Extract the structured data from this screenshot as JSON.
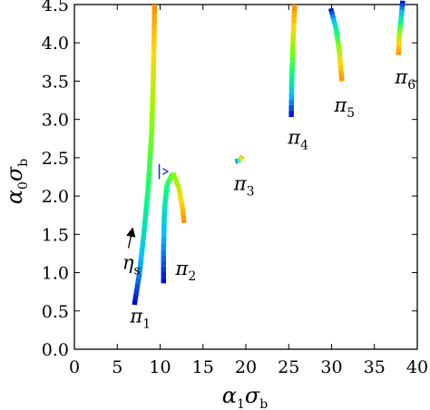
{
  "chart_data": {
    "type": "scatter",
    "title": "",
    "xlabel": "α1σb",
    "ylabel": "α0σb",
    "xlabel_main": "α",
    "xlabel_sub1": "1",
    "xlabel_mid": "σ",
    "xlabel_sub2": "b",
    "ylabel_main": "α",
    "ylabel_sub1": "0",
    "ylabel_mid": "σ",
    "ylabel_sub2": "b",
    "xlim": [
      0,
      40
    ],
    "ylim": [
      0,
      4.5
    ],
    "xticks": [
      0,
      5,
      10,
      15,
      20,
      25,
      30,
      35,
      40
    ],
    "yticks": [
      0.0,
      0.5,
      1.0,
      1.5,
      2.0,
      2.5,
      3.0,
      3.5,
      4.0,
      4.5
    ],
    "xtick_labels": [
      "0",
      "5",
      "10",
      "15",
      "20",
      "25",
      "30",
      "35",
      "40"
    ],
    "ytick_labels": [
      "0.0",
      "0.5",
      "1.0",
      "1.5",
      "2.0",
      "2.5",
      "3.0",
      "3.5",
      "4.0",
      "4.5"
    ],
    "grid": false,
    "color_scale": [
      "#0000cd",
      "#00bfff",
      "#00ff7f",
      "#7fff00",
      "#ffd700",
      "#ff8c00"
    ],
    "series": [
      {
        "name": "π1",
        "label_main": "π",
        "label_sub": "1",
        "label_at": [
          6.5,
          0.35
        ],
        "points": [
          [
            7.0,
            0.58
          ],
          [
            7.6,
            1.0
          ],
          [
            8.1,
            1.5
          ],
          [
            8.6,
            2.1
          ],
          [
            9.0,
            2.8
          ],
          [
            9.2,
            3.5
          ],
          [
            9.3,
            4.1
          ],
          [
            9.35,
            4.5
          ]
        ]
      },
      {
        "name": "π2",
        "label_main": "π",
        "label_sub": "2",
        "label_at": [
          11.8,
          0.97
        ],
        "points": [
          [
            10.4,
            0.86
          ],
          [
            10.4,
            1.3
          ],
          [
            10.5,
            1.8
          ],
          [
            10.8,
            2.15
          ],
          [
            11.5,
            2.3
          ],
          [
            12.2,
            2.1
          ],
          [
            12.6,
            1.85
          ],
          [
            12.8,
            1.65
          ]
        ]
      },
      {
        "name": "π3",
        "label_main": "π",
        "label_sub": "3",
        "label_at": [
          18.6,
          2.08
        ],
        "points": [
          [
            18.8,
            2.45
          ],
          [
            19.1,
            2.46
          ],
          [
            19.4,
            2.48
          ],
          [
            19.6,
            2.52
          ]
        ]
      },
      {
        "name": "π4",
        "label_main": "π",
        "label_sub": "4",
        "label_at": [
          24.9,
          2.68
        ],
        "points": [
          [
            25.3,
            3.03
          ],
          [
            25.35,
            3.5
          ],
          [
            25.5,
            4.0
          ],
          [
            25.7,
            4.5
          ]
        ]
      },
      {
        "name": "π5",
        "label_main": "π",
        "label_sub": "5",
        "label_at": [
          30.3,
          3.1
        ],
        "points": [
          [
            29.9,
            4.45
          ],
          [
            30.5,
            4.2
          ],
          [
            30.9,
            3.9
          ],
          [
            31.2,
            3.5
          ]
        ]
      },
      {
        "name": "π6",
        "label_main": "π",
        "label_sub": "6",
        "label_at": [
          37.4,
          3.47
        ],
        "points": [
          [
            38.3,
            4.55
          ],
          [
            38.1,
            4.3
          ],
          [
            37.9,
            4.1
          ],
          [
            37.8,
            3.84
          ]
        ]
      }
    ],
    "annotations": {
      "eta": {
        "main": "η",
        "sub": "s",
        "at": [
          5.6,
          1.05
        ],
        "arrow_from": [
          6.3,
          1.32
        ],
        "arrow_to": [
          6.8,
          1.58
        ]
      }
    }
  }
}
